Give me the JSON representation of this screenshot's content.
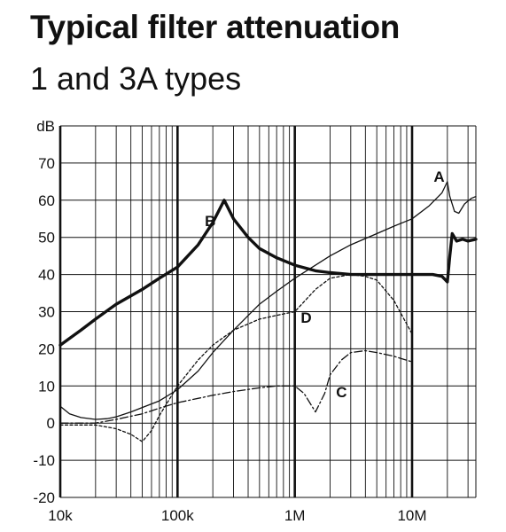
{
  "header": {
    "title": "Typical filter attenuation",
    "subtitle": "1 and 3A types"
  },
  "chart_data": {
    "type": "line",
    "title": "Typical filter attenuation",
    "subtitle": "1 and 3A types",
    "xlabel": "",
    "ylabel": "dB",
    "x_scale": "log",
    "xlim": [
      10000,
      35000000
    ],
    "ylim": [
      -20,
      80
    ],
    "x_ticks": [
      {
        "value": 10000,
        "label": "10k"
      },
      {
        "value": 100000,
        "label": "100k"
      },
      {
        "value": 1000000,
        "label": "1M"
      },
      {
        "value": 10000000,
        "label": "10M"
      }
    ],
    "y_ticks": [
      {
        "value": 80,
        "label": "dB"
      },
      {
        "value": 70,
        "label": "70"
      },
      {
        "value": 60,
        "label": "60"
      },
      {
        "value": 50,
        "label": "50"
      },
      {
        "value": 40,
        "label": "40"
      },
      {
        "value": 30,
        "label": "30"
      },
      {
        "value": 20,
        "label": "20"
      },
      {
        "value": 10,
        "label": "10"
      },
      {
        "value": 0,
        "label": "0"
      },
      {
        "value": -10,
        "label": "-10"
      },
      {
        "value": -20,
        "label": "-20"
      }
    ],
    "grid": true,
    "series": [
      {
        "name": "A",
        "style": "thin-solid",
        "points": [
          [
            10000,
            4.5
          ],
          [
            12000,
            2.5
          ],
          [
            15000,
            1.5
          ],
          [
            20000,
            1
          ],
          [
            25000,
            1.2
          ],
          [
            30000,
            1.7
          ],
          [
            40000,
            3
          ],
          [
            50000,
            4.2
          ],
          [
            70000,
            6
          ],
          [
            100000,
            9
          ],
          [
            150000,
            14
          ],
          [
            200000,
            19
          ],
          [
            300000,
            25
          ],
          [
            500000,
            32
          ],
          [
            700000,
            35.5
          ],
          [
            1000000,
            39
          ],
          [
            1500000,
            42.5
          ],
          [
            2000000,
            45
          ],
          [
            3000000,
            48
          ],
          [
            5000000,
            51
          ],
          [
            7000000,
            53
          ],
          [
            10000000,
            55
          ],
          [
            14000000,
            58.5
          ],
          [
            18000000,
            62
          ],
          [
            20000000,
            65
          ],
          [
            21000000,
            61
          ],
          [
            23000000,
            57
          ],
          [
            25000000,
            56.5
          ],
          [
            28000000,
            59
          ],
          [
            32000000,
            60.5
          ],
          [
            35000000,
            61
          ]
        ]
      },
      {
        "name": "B",
        "style": "thick-solid",
        "points": [
          [
            10000,
            21
          ],
          [
            15000,
            25
          ],
          [
            20000,
            28
          ],
          [
            30000,
            32
          ],
          [
            50000,
            36
          ],
          [
            70000,
            39
          ],
          [
            100000,
            42
          ],
          [
            150000,
            48
          ],
          [
            200000,
            54
          ],
          [
            250000,
            60
          ],
          [
            300000,
            55
          ],
          [
            400000,
            50
          ],
          [
            500000,
            47
          ],
          [
            700000,
            44.5
          ],
          [
            1000000,
            42.5
          ],
          [
            1500000,
            41
          ],
          [
            2000000,
            40.5
          ],
          [
            3000000,
            40
          ],
          [
            5000000,
            40
          ],
          [
            10000000,
            40
          ],
          [
            15000000,
            40
          ],
          [
            18000000,
            39.5
          ],
          [
            20000000,
            38
          ],
          [
            21000000,
            45
          ],
          [
            22000000,
            51
          ],
          [
            24000000,
            49
          ],
          [
            27000000,
            49.5
          ],
          [
            30000000,
            49
          ],
          [
            35000000,
            49.5
          ]
        ]
      },
      {
        "name": "C",
        "style": "dash-dot",
        "points": [
          [
            10000,
            0
          ],
          [
            15000,
            0
          ],
          [
            20000,
            0
          ],
          [
            30000,
            1
          ],
          [
            50000,
            2.5
          ],
          [
            70000,
            4
          ],
          [
            100000,
            5.5
          ],
          [
            200000,
            7.5
          ],
          [
            300000,
            8.5
          ],
          [
            500000,
            9.5
          ],
          [
            700000,
            10
          ],
          [
            1000000,
            10
          ],
          [
            1200000,
            8
          ],
          [
            1500000,
            3
          ],
          [
            1800000,
            8
          ],
          [
            2000000,
            13
          ],
          [
            2500000,
            17
          ],
          [
            3000000,
            19
          ],
          [
            4000000,
            19.5
          ],
          [
            5000000,
            19
          ],
          [
            7000000,
            18
          ],
          [
            10000000,
            16.5
          ]
        ]
      },
      {
        "name": "D",
        "style": "dashed",
        "points": [
          [
            10000,
            -0.5
          ],
          [
            20000,
            -0.5
          ],
          [
            30000,
            -1.5
          ],
          [
            40000,
            -3
          ],
          [
            50000,
            -5
          ],
          [
            60000,
            -2
          ],
          [
            70000,
            2
          ],
          [
            100000,
            10
          ],
          [
            150000,
            17
          ],
          [
            200000,
            21
          ],
          [
            300000,
            25
          ],
          [
            500000,
            28
          ],
          [
            700000,
            29
          ],
          [
            1000000,
            30
          ],
          [
            1500000,
            36
          ],
          [
            2000000,
            39
          ],
          [
            3000000,
            40
          ],
          [
            4000000,
            39.5
          ],
          [
            5000000,
            38.5
          ],
          [
            7000000,
            33
          ],
          [
            10000000,
            24
          ]
        ]
      }
    ],
    "annotations": [
      {
        "series": "A",
        "text": "A",
        "x": 17000000,
        "y": 65
      },
      {
        "series": "B",
        "text": "B",
        "x": 190000,
        "y": 53
      },
      {
        "series": "C",
        "text": "C",
        "x": 2500000,
        "y": 7
      },
      {
        "series": "D",
        "text": "D",
        "x": 1250000,
        "y": 27
      }
    ]
  }
}
